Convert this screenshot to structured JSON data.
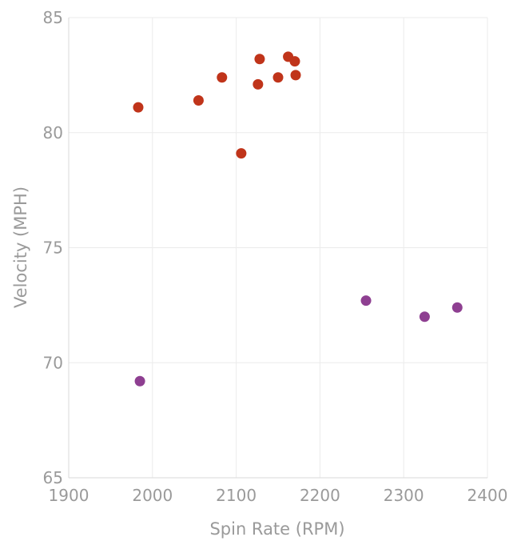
{
  "chart_data": {
    "type": "scatter",
    "xlabel": "Spin Rate (RPM)",
    "ylabel": "Velocity (MPH)",
    "xlim": [
      1900,
      2400
    ],
    "ylim": [
      65,
      85
    ],
    "x_ticks": [
      1900,
      2000,
      2100,
      2200,
      2300,
      2400
    ],
    "y_ticks": [
      65,
      70,
      75,
      80,
      85
    ],
    "grid": true,
    "series": [
      {
        "color": "#c0341a",
        "points": [
          [
            1983,
            81.1
          ],
          [
            2055,
            81.4
          ],
          [
            2083,
            82.4
          ],
          [
            2106,
            79.1
          ],
          [
            2126,
            82.1
          ],
          [
            2128,
            83.2
          ],
          [
            2150,
            82.4
          ],
          [
            2162,
            83.3
          ],
          [
            2170,
            83.1
          ],
          [
            2171,
            82.5
          ]
        ]
      },
      {
        "color": "#8e3f91",
        "points": [
          [
            1985,
            69.2
          ],
          [
            2255,
            72.7
          ],
          [
            2325,
            72.0
          ],
          [
            2364,
            72.4
          ]
        ]
      }
    ]
  }
}
